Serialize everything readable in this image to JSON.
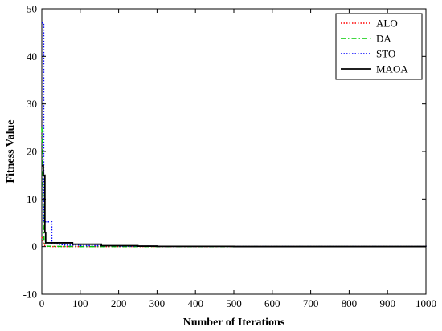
{
  "chart_data": {
    "type": "line",
    "xlabel": "Number of Iterations",
    "ylabel": "Fitness Value",
    "xlim": [
      0,
      1000
    ],
    "ylim": [
      -10,
      50
    ],
    "xticks": [
      0,
      100,
      200,
      300,
      400,
      500,
      600,
      700,
      800,
      900,
      1000
    ],
    "yticks": [
      -10,
      0,
      10,
      20,
      30,
      40,
      50
    ],
    "grid": false,
    "legend_position": "top-right",
    "series": [
      {
        "name": "ALO",
        "color": "#ff0000",
        "dash": "dotted",
        "x": [
          0,
          3,
          5,
          8,
          12,
          20,
          40,
          80,
          150,
          300,
          500,
          1000
        ],
        "y": [
          2.0,
          1.0,
          0.5,
          0.2,
          0.05,
          0.02,
          0.01,
          0.0,
          0.0,
          0.0,
          0.0,
          0.0
        ]
      },
      {
        "name": "DA",
        "color": "#00cc00",
        "dash": "dash-dot",
        "x": [
          0,
          2,
          4,
          6,
          9,
          15,
          30,
          80,
          200,
          500,
          1000
        ],
        "y": [
          25.0,
          20.0,
          5.0,
          1.0,
          0.3,
          0.1,
          0.05,
          0.02,
          0.0,
          0.0,
          0.0
        ]
      },
      {
        "name": "STO",
        "color": "#0000ff",
        "dash": "dotted",
        "x": [
          0,
          3,
          5,
          6,
          25,
          26,
          40,
          60,
          100,
          150,
          200,
          300,
          500,
          1000
        ],
        "y": [
          47.0,
          47.0,
          5.2,
          5.2,
          5.2,
          0.6,
          0.4,
          0.3,
          0.2,
          0.15,
          0.1,
          0.05,
          0.02,
          0.0
        ],
        "step": true
      },
      {
        "name": "MAOA",
        "color": "#000000",
        "dash": "solid",
        "x": [
          0,
          4,
          8,
          10,
          12,
          20,
          25,
          30,
          50,
          80,
          100,
          120,
          150,
          155,
          200,
          250,
          300,
          500,
          1000
        ],
        "y": [
          17.0,
          15.0,
          3.0,
          0.8,
          0.8,
          0.8,
          0.8,
          0.8,
          0.8,
          0.5,
          0.5,
          0.5,
          0.5,
          0.2,
          0.2,
          0.1,
          0.05,
          0.02,
          0.0
        ],
        "step": true
      }
    ]
  }
}
